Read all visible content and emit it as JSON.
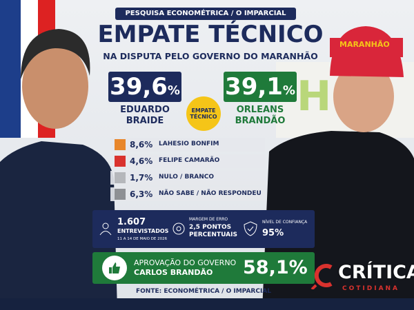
{
  "header": {
    "kicker": "PESQUISA ECONOMÉTRICA / O IMPARCIAL",
    "title": "EMPATE TÉCNICO",
    "subtitle": "NA DISPUTA PELO GOVERNO DO MARANHÃO"
  },
  "candidates": [
    {
      "value": "39,6",
      "unit": "%",
      "first": "EDUARDO",
      "last": "BRAIDE"
    },
    {
      "value": "39,1",
      "unit": "%",
      "first": "ORLEANS",
      "last": "BRANDÃO"
    }
  ],
  "badge": [
    "EMPATE",
    "TÉCNICO"
  ],
  "others": [
    {
      "value": "8,6%",
      "label": "LAHESIO BONFIM"
    },
    {
      "value": "4,6%",
      "label": "FELIPE CAMARÃO"
    },
    {
      "value": "1,7%",
      "label": "NULO / BRANCO"
    },
    {
      "value": "6,3%",
      "label": "NÃO SABE / NÃO RESPONDEU"
    }
  ],
  "stats": {
    "count": "1.607",
    "count_label": "ENTREVISTADOS",
    "dates": "11 A 14 DE MAIO DE 2026",
    "margin_label": "MARGEM DE ERRO",
    "margin_value": [
      "2,5 PONTOS",
      "PERCENTUAIS"
    ],
    "confidence_label": "NÍVEL DE CONFIANÇA",
    "confidence_value": "95%"
  },
  "approval": {
    "label1": "APROVAÇÃO DO GOVERNO",
    "label2": "CARLOS BRANDÃO",
    "value": "58,1%"
  },
  "source": "FONTE: ECONOMÉTRICA / O IMPARCIAL",
  "logo": {
    "name": "CRÍTICA",
    "tag": "COTIDIANA",
    "cap": "MARANHÃO"
  }
}
